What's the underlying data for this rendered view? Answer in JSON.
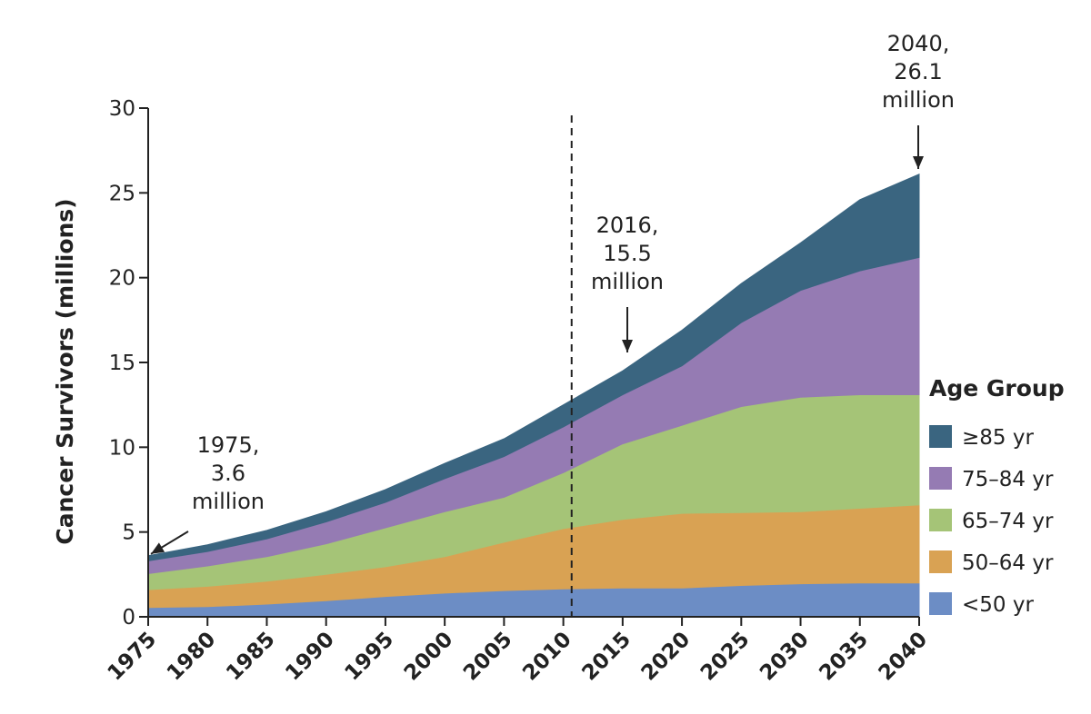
{
  "chart_data": {
    "type": "area",
    "stacked": true,
    "ylabel": "Cancer Survivors (millions)",
    "xlabel": "",
    "ylim": [
      0,
      30
    ],
    "xlim": [
      1975,
      2040
    ],
    "y_ticks": [
      0,
      5,
      10,
      15,
      20,
      25,
      30
    ],
    "x_ticks": [
      1975,
      1980,
      1985,
      1990,
      1995,
      2000,
      2005,
      2010,
      2015,
      2020,
      2025,
      2030,
      2035,
      2040
    ],
    "grid": false,
    "legend_title": "Age Group",
    "legend_position": "right",
    "x": [
      1975,
      1980,
      1985,
      1990,
      1995,
      2000,
      2005,
      2010,
      2015,
      2020,
      2025,
      2030,
      2035,
      2040
    ],
    "series": [
      {
        "name": "<50 yr",
        "color": "#6c8dc5",
        "values": [
          0.55,
          0.6,
          0.75,
          0.95,
          1.2,
          1.4,
          1.55,
          1.65,
          1.7,
          1.7,
          1.85,
          1.95,
          2.0,
          2.0
        ]
      },
      {
        "name": "50–64 yr",
        "color": "#d9a253",
        "values": [
          1.05,
          1.2,
          1.35,
          1.55,
          1.75,
          2.15,
          2.85,
          3.55,
          4.05,
          4.4,
          4.3,
          4.25,
          4.4,
          4.6
        ]
      },
      {
        "name": "65–74 yr",
        "color": "#a5c477",
        "values": [
          0.95,
          1.2,
          1.45,
          1.8,
          2.3,
          2.65,
          2.65,
          3.3,
          4.45,
          5.2,
          6.25,
          6.75,
          6.7,
          6.5
        ]
      },
      {
        "name": "75–84 yr",
        "color": "#957bb3",
        "values": [
          0.75,
          0.85,
          1.05,
          1.3,
          1.5,
          1.95,
          2.4,
          2.7,
          2.9,
          3.5,
          4.95,
          6.3,
          7.3,
          8.1
        ]
      },
      {
        "name": "≥85 yr",
        "color": "#3a6580",
        "values": [
          0.3,
          0.4,
          0.5,
          0.6,
          0.75,
          0.9,
          1.05,
          1.3,
          1.4,
          2.1,
          2.3,
          2.8,
          4.2,
          4.9
        ]
      }
    ],
    "reference_line": {
      "x": 2010.7,
      "style": "dashed"
    },
    "annotations": [
      {
        "lines": [
          "1975,",
          "3.6",
          "million"
        ],
        "x": 1975,
        "y": 3.6
      },
      {
        "lines": [
          "2016,",
          "15.5",
          "million"
        ],
        "x": 2015.5,
        "y": 15.5
      },
      {
        "lines": [
          "2040,",
          "26.1",
          "million"
        ],
        "x": 2040,
        "y": 26.1
      }
    ]
  }
}
